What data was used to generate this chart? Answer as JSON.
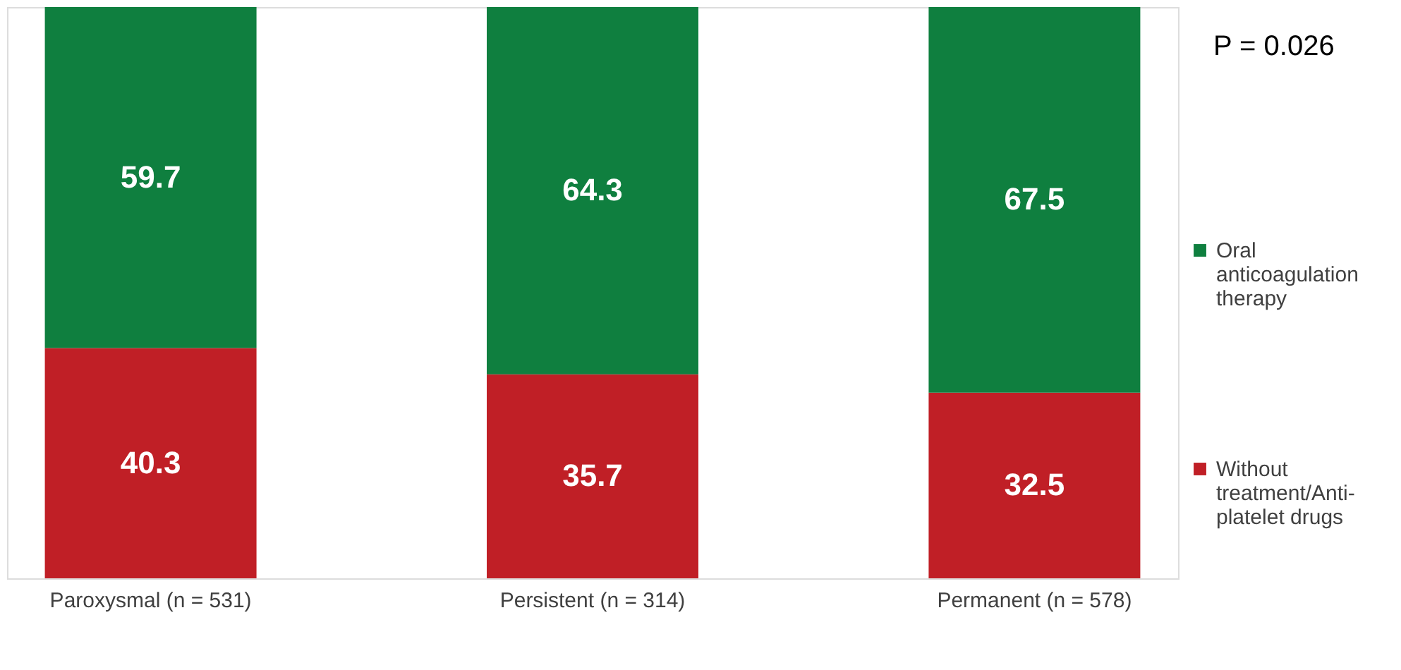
{
  "chart_data": {
    "type": "bar",
    "stacked": true,
    "data_labels": true,
    "legend": "right",
    "categories": [
      "Paroxysmal (n = 531)",
      "Persistent (n = 314)",
      "Permanent (n = 578)"
    ],
    "series": [
      {
        "name": "Without treatment/Anti-platelet drugs",
        "color": "#c01f26",
        "values": [
          40.3,
          35.7,
          32.5
        ]
      },
      {
        "name": "Oral anticoagulation therapy",
        "color": "#0f7f3f",
        "values": [
          59.7,
          64.3,
          67.5
        ]
      }
    ],
    "annotations": [
      "P = 0.026"
    ]
  }
}
